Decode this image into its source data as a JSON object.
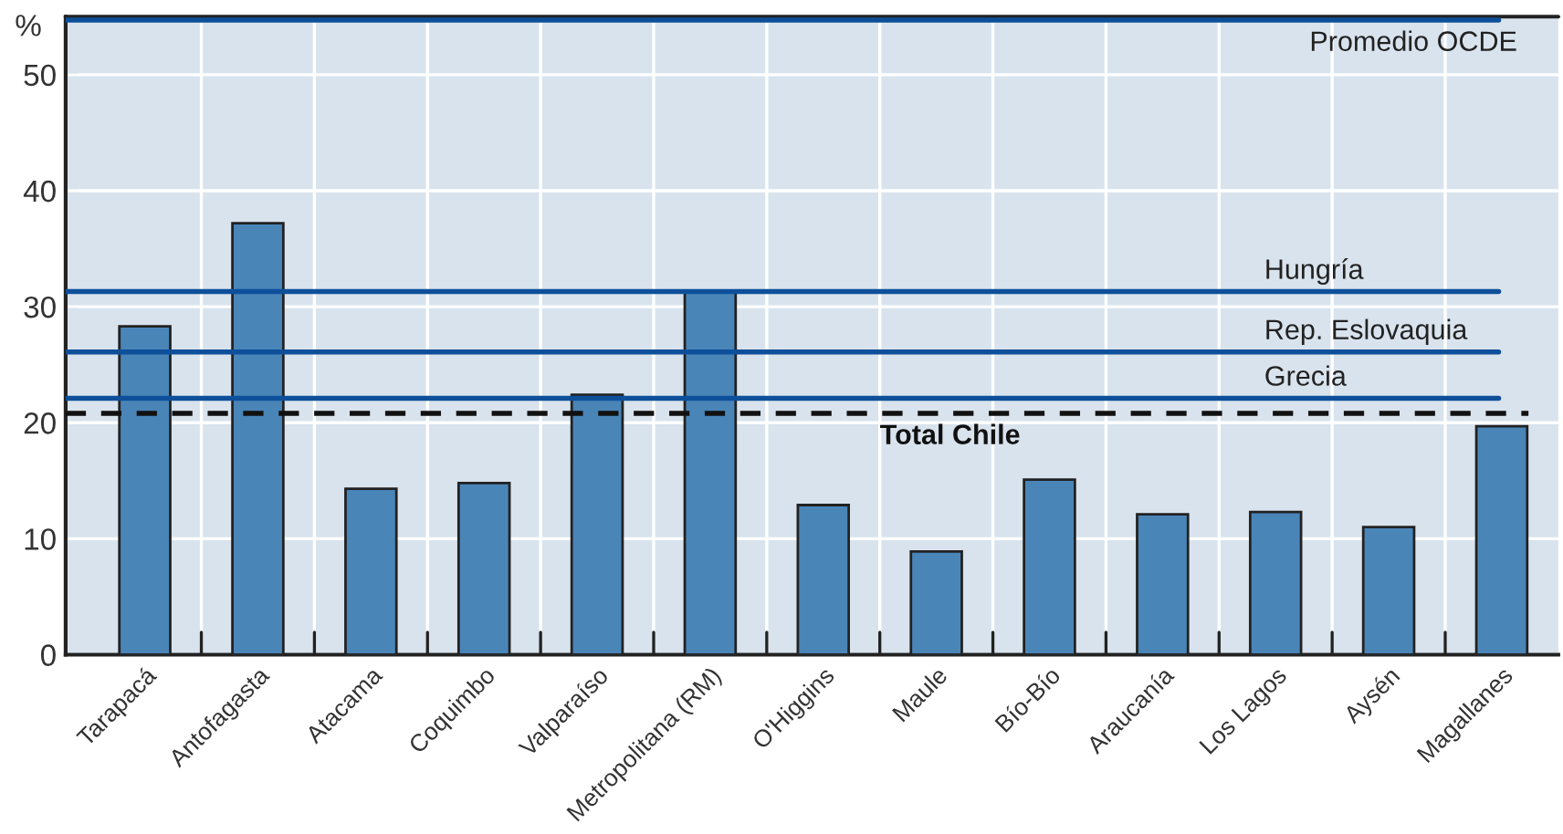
{
  "chart_data": {
    "type": "bar",
    "ylabel": "%",
    "categories": [
      "Tarapacá",
      "Antofagasta",
      "Atacama",
      "Coquimbo",
      "Valparaíso",
      "Metropolitana (RM)",
      "O'Higgins",
      "Maule",
      "Bío-Bío",
      "Araucanía",
      "Los Lagos",
      "Aysén",
      "Magallanes"
    ],
    "values": [
      28.3,
      37.2,
      14.3,
      14.8,
      22.4,
      31.3,
      12.9,
      8.9,
      15.1,
      12.1,
      12.3,
      11.0,
      19.7
    ],
    "color": "#4a85b8",
    "ylim": [
      0,
      55
    ],
    "yticks": [
      0,
      10,
      20,
      30,
      40,
      50
    ],
    "grid": true,
    "ref_lines": [
      {
        "axis": "y",
        "value": 54.7,
        "label": "Promedio OCDE",
        "color": "#0e4f9a",
        "line_style": "solid"
      },
      {
        "axis": "y",
        "value": 31.3,
        "label": "Hungría",
        "color": "#0e4f9a",
        "line_style": "solid"
      },
      {
        "axis": "y",
        "value": 26.1,
        "label": "Rep. Eslovaquia",
        "color": "#0e4f9a",
        "line_style": "solid"
      },
      {
        "axis": "y",
        "value": 22.1,
        "label": "Grecia",
        "color": "#0e4f9a",
        "line_style": "solid"
      },
      {
        "axis": "y",
        "value": 20.8,
        "label": "Total Chile",
        "color": "#111111",
        "line_style": "dashed"
      }
    ]
  }
}
